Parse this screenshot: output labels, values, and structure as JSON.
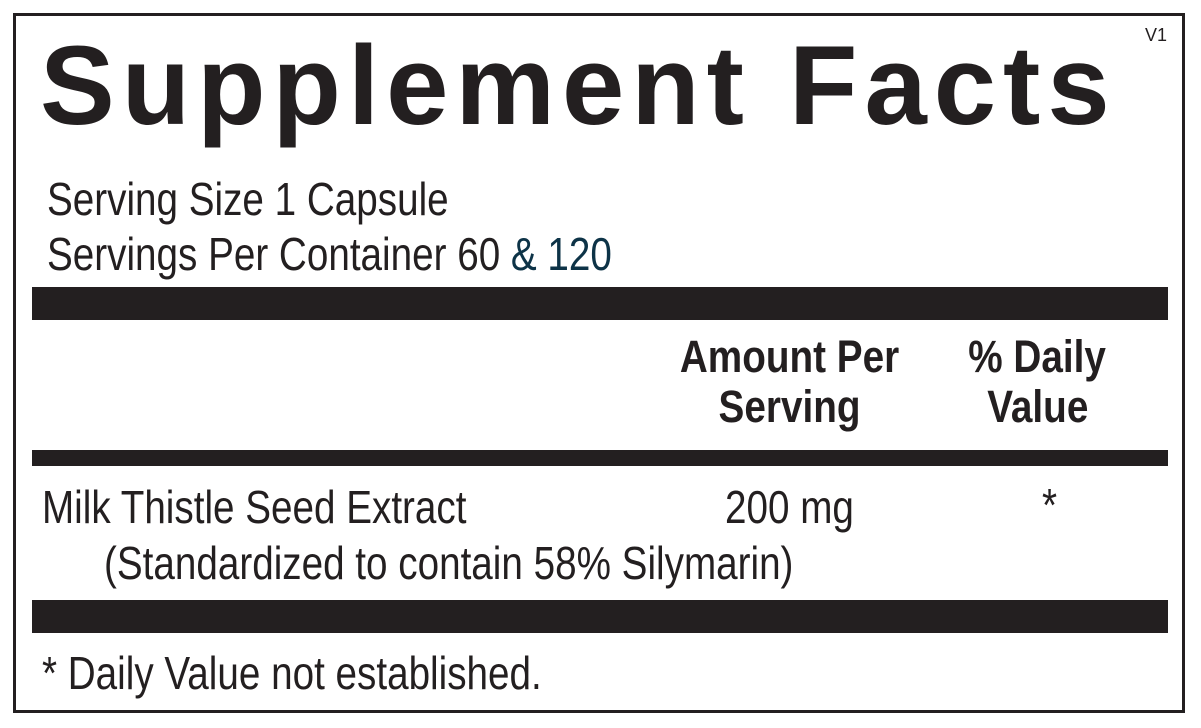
{
  "label": {
    "title": "Supplement Facts",
    "version": "V1",
    "serving_size": "Serving Size 1 Capsule",
    "servings_per_container": "Servings Per Container 60",
    "servings_alt": "& 120",
    "servings_alt_color": "#0d3347",
    "columns": {
      "amount_line1": "Amount Per",
      "amount_line2": "Serving",
      "dv_line1": "% Daily",
      "dv_line2": "Value"
    },
    "ingredients": [
      {
        "name": "Milk Thistle Seed Extract",
        "amount": "200 mg",
        "dv": "*",
        "note": "(Standardized to contain 58% Silymarin)"
      }
    ],
    "footnote": "* Daily Value not established."
  }
}
